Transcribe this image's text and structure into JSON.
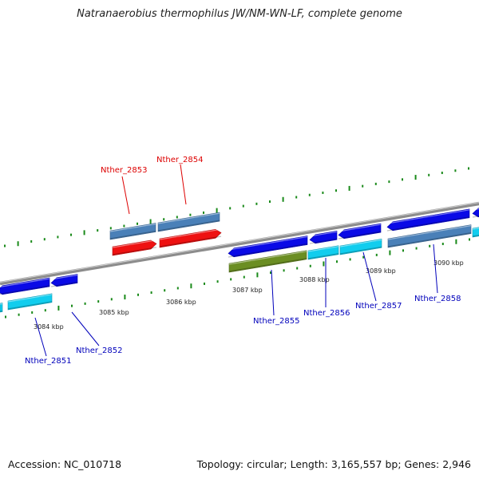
{
  "title": "Natranaerobius thermophilus JW/NM-WN-LF, complete genome",
  "footer": {
    "accession": "Accession: NC_010718",
    "summary": "Topology: circular; Length: 3,165,557 bp; Genes: 2,946"
  },
  "colors": {
    "backbone": "#8c8c8c",
    "dots": "#1a8a1a",
    "forward_red": "#ee1111",
    "forward_blue": "#4a80b8",
    "reverse_blue": "#0a0ae6",
    "reverse_cyan": "#11cdee",
    "reverse_olive": "#6b8e23",
    "label_red": "#dd0000",
    "label_blue": "#0000bb"
  },
  "ticks": [
    "3084 kbp",
    "3085 kbp",
    "3086 kbp",
    "3087 kbp",
    "3088 kbp",
    "3089 kbp",
    "3090 kbp"
  ],
  "genes": [
    {
      "id": "Nther_2851",
      "strand": "reverse",
      "label_color": "label_blue"
    },
    {
      "id": "Nther_2852",
      "strand": "reverse",
      "label_color": "label_blue"
    },
    {
      "id": "Nther_2853",
      "strand": "forward",
      "label_color": "label_red"
    },
    {
      "id": "Nther_2854",
      "strand": "forward",
      "label_color": "label_red"
    },
    {
      "id": "Nther_2855",
      "strand": "reverse",
      "label_color": "label_blue"
    },
    {
      "id": "Nther_2856",
      "strand": "reverse",
      "label_color": "label_blue"
    },
    {
      "id": "Nther_2857",
      "strand": "reverse",
      "label_color": "label_blue"
    },
    {
      "id": "Nther_2858",
      "strand": "reverse",
      "label_color": "label_blue"
    }
  ]
}
